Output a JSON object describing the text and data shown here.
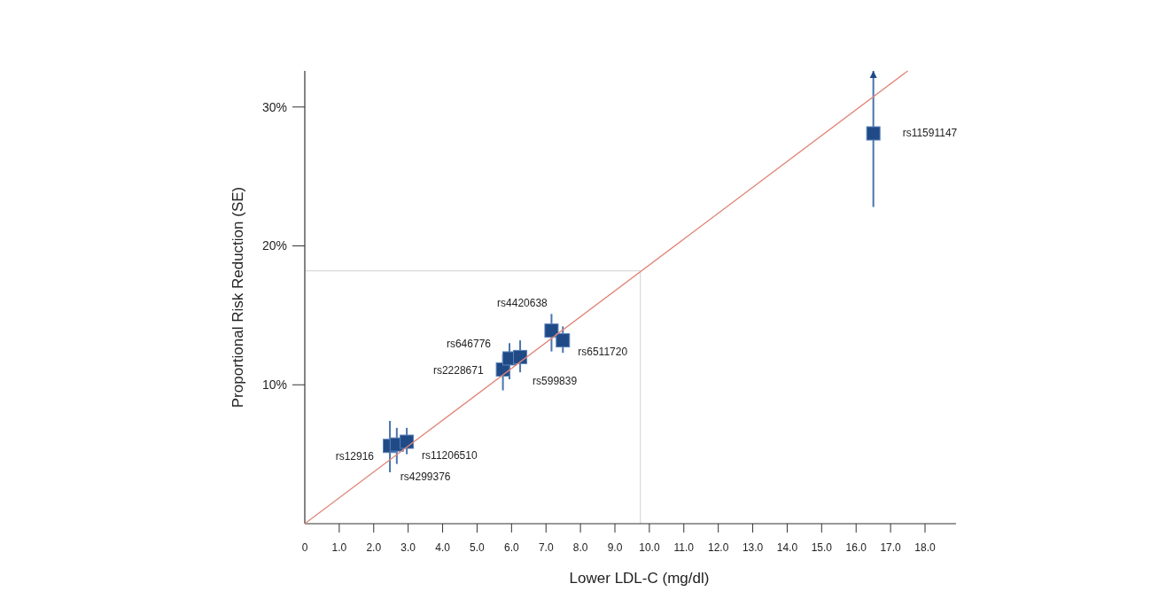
{
  "chart_data": {
    "type": "scatter",
    "xlabel": "Lower LDL-C (mg/dl)",
    "ylabel": "Proportional Risk Reduction (SE)",
    "xlim": [
      0,
      18.9
    ],
    "ylim": [
      0,
      32.6
    ],
    "xticks": [
      0,
      {
        "value": 1,
        "label": "1.0"
      },
      {
        "value": 2,
        "label": "2.0"
      },
      {
        "value": 3,
        "label": "3.0"
      },
      {
        "value": 4,
        "label": "4.0"
      },
      {
        "value": 5,
        "label": "5.0"
      },
      {
        "value": 6,
        "label": "6.0"
      },
      {
        "value": 7,
        "label": "7.0"
      },
      {
        "value": 8,
        "label": "8.0"
      },
      {
        "value": 9,
        "label": "9.0"
      },
      {
        "value": 10,
        "label": "10.0"
      },
      {
        "value": 11,
        "label": "11.0"
      },
      {
        "value": 12,
        "label": "12.0"
      },
      {
        "value": 13,
        "label": "13.0"
      },
      {
        "value": 14,
        "label": "14.0"
      },
      {
        "value": 15,
        "label": "15.0"
      },
      {
        "value": 16,
        "label": "16.0"
      },
      {
        "value": 17,
        "label": "17.0"
      },
      {
        "value": 18,
        "label": "18.0"
      }
    ],
    "yticks": [
      {
        "value": 10,
        "label": "10%"
      },
      {
        "value": 20,
        "label": "20%"
      },
      {
        "value": 30,
        "label": "30%"
      }
    ],
    "series": [
      {
        "marker": "square",
        "color": "#1f4a86",
        "x": [
          2.47,
          2.67,
          2.96,
          5.75,
          5.94,
          6.25,
          7.16,
          7.49,
          16.5
        ],
        "values": [
          5.6,
          5.7,
          5.9,
          11.1,
          11.9,
          12.0,
          13.9,
          13.2,
          28.1
        ],
        "errors": [
          [
            3.7,
            7.4
          ],
          [
            4.3,
            6.9
          ],
          [
            5.0,
            6.9
          ],
          [
            9.6,
            12.2
          ],
          [
            10.4,
            13.0
          ],
          [
            10.9,
            13.2
          ],
          [
            12.4,
            15.1
          ],
          [
            12.3,
            14.2
          ],
          [
            22.8,
            32.6
          ]
        ]
      },
      {
        "type": "line",
        "color": "#e0877a",
        "x": [
          0,
          17.5
        ],
        "values": [
          0,
          32.6
        ]
      }
    ],
    "ref_lines": [
      {
        "axis": "x",
        "value": 9.74,
        "color": "#d0d0d0"
      },
      {
        "axis": "y",
        "value": 18.2,
        "color": "#d0d0d0"
      }
    ],
    "annotations": [
      {
        "text": "rs12916",
        "x": 2.47,
        "y": 5.6
      },
      {
        "text": "rs4299376",
        "x": 2.67,
        "y": 5.7
      },
      {
        "text": "rs11206510",
        "x": 2.96,
        "y": 5.9
      },
      {
        "text": "rs2228671",
        "x": 5.75,
        "y": 11.1
      },
      {
        "text": "rs646776",
        "x": 5.94,
        "y": 11.9
      },
      {
        "text": "rs599839",
        "x": 6.25,
        "y": 12.0
      },
      {
        "text": "rs4420638",
        "x": 7.16,
        "y": 13.9
      },
      {
        "text": "rs6511720",
        "x": 7.49,
        "y": 13.2
      },
      {
        "text": "rs11591147",
        "x": 16.5,
        "y": 28.1
      }
    ]
  }
}
